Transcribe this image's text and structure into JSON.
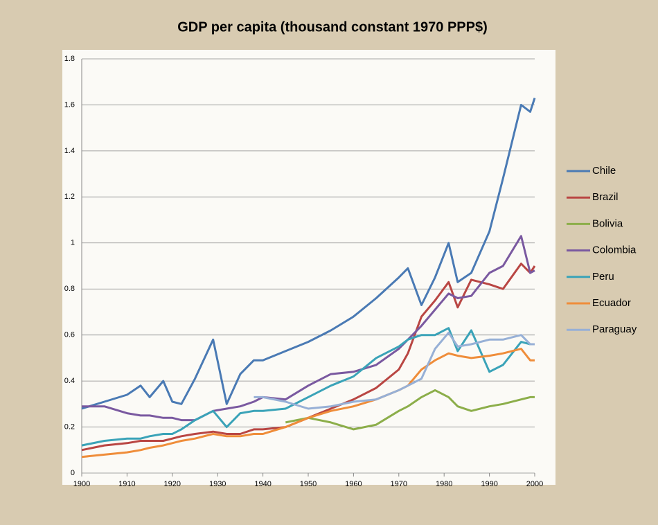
{
  "chart_data": {
    "type": "line",
    "title": "GDP per capita (thousand constant 1970 PPP$)",
    "x": [
      1900,
      1905,
      1910,
      1913,
      1915,
      1918,
      1920,
      1922,
      1925,
      1929,
      1932,
      1935,
      1938,
      1940,
      1945,
      1950,
      1955,
      1960,
      1965,
      1970,
      1972,
      1975,
      1978,
      1981,
      1983,
      1986,
      1990,
      1993,
      1997,
      1999,
      2000
    ],
    "series": [
      {
        "name": "Chile",
        "color": "#4a7ab4",
        "values": [
          0.28,
          0.31,
          0.34,
          0.38,
          0.33,
          0.4,
          0.31,
          0.3,
          0.41,
          0.58,
          0.3,
          0.43,
          0.49,
          0.49,
          0.53,
          0.57,
          0.62,
          0.68,
          0.76,
          0.85,
          0.89,
          0.73,
          0.85,
          1.0,
          0.83,
          0.87,
          1.05,
          1.28,
          1.6,
          1.57,
          1.63
        ]
      },
      {
        "name": "Brazil",
        "color": "#b94643",
        "values": [
          0.1,
          0.12,
          0.13,
          0.14,
          0.14,
          0.14,
          0.15,
          0.16,
          0.17,
          0.18,
          0.17,
          0.17,
          0.19,
          0.19,
          0.2,
          0.24,
          0.28,
          0.32,
          0.37,
          0.45,
          0.52,
          0.68,
          0.75,
          0.83,
          0.72,
          0.84,
          0.82,
          0.8,
          0.91,
          0.87,
          0.9
        ]
      },
      {
        "name": "Bolivia",
        "color": "#8cae4a",
        "values": [
          null,
          null,
          null,
          null,
          null,
          null,
          null,
          null,
          null,
          null,
          null,
          null,
          null,
          null,
          0.22,
          0.24,
          0.22,
          0.19,
          0.21,
          0.27,
          0.29,
          0.33,
          0.36,
          0.33,
          0.29,
          0.27,
          0.29,
          0.3,
          0.32,
          0.33,
          0.33
        ]
      },
      {
        "name": "Colombia",
        "color": "#7a59a0",
        "values": [
          0.29,
          0.29,
          0.26,
          0.25,
          0.25,
          0.24,
          0.24,
          0.23,
          0.23,
          0.27,
          0.28,
          0.29,
          0.31,
          0.33,
          0.32,
          0.38,
          0.43,
          0.44,
          0.47,
          0.54,
          0.58,
          0.64,
          0.71,
          0.78,
          0.76,
          0.77,
          0.87,
          0.9,
          1.03,
          0.87,
          0.88
        ]
      },
      {
        "name": "Peru",
        "color": "#3aa3b8",
        "values": [
          0.12,
          0.14,
          0.15,
          0.15,
          0.16,
          0.17,
          0.17,
          0.19,
          0.23,
          0.27,
          0.2,
          0.26,
          0.27,
          0.27,
          0.28,
          0.33,
          0.38,
          0.42,
          0.5,
          0.55,
          0.58,
          0.6,
          0.6,
          0.63,
          0.53,
          0.62,
          0.44,
          0.47,
          0.57,
          0.56,
          0.56
        ]
      },
      {
        "name": "Ecuador",
        "color": "#ef8d3a",
        "values": [
          0.07,
          0.08,
          0.09,
          0.1,
          0.11,
          0.12,
          0.13,
          0.14,
          0.15,
          0.17,
          0.16,
          0.16,
          0.17,
          0.17,
          0.2,
          0.24,
          0.27,
          0.29,
          0.32,
          0.36,
          0.38,
          0.45,
          0.49,
          0.52,
          0.51,
          0.5,
          0.51,
          0.52,
          0.54,
          0.49,
          0.49
        ]
      },
      {
        "name": "Paraguay",
        "color": "#97b0d6",
        "values": [
          null,
          null,
          null,
          null,
          null,
          null,
          null,
          null,
          null,
          null,
          null,
          null,
          0.33,
          0.33,
          0.31,
          0.28,
          0.29,
          0.31,
          0.32,
          0.36,
          0.38,
          0.41,
          0.54,
          0.61,
          0.55,
          0.56,
          0.58,
          0.58,
          0.6,
          0.56,
          0.56
        ]
      }
    ],
    "xlim": [
      1900,
      2000
    ],
    "xticks": [
      1900,
      1910,
      1920,
      1930,
      1940,
      1950,
      1960,
      1970,
      1980,
      1990,
      2000
    ],
    "ylim": [
      0,
      1.8
    ],
    "yticks": [
      0,
      0.2,
      0.4,
      0.6,
      0.8,
      1,
      1.2,
      1.4,
      1.6,
      1.8
    ],
    "grid": true,
    "legend": "right"
  }
}
